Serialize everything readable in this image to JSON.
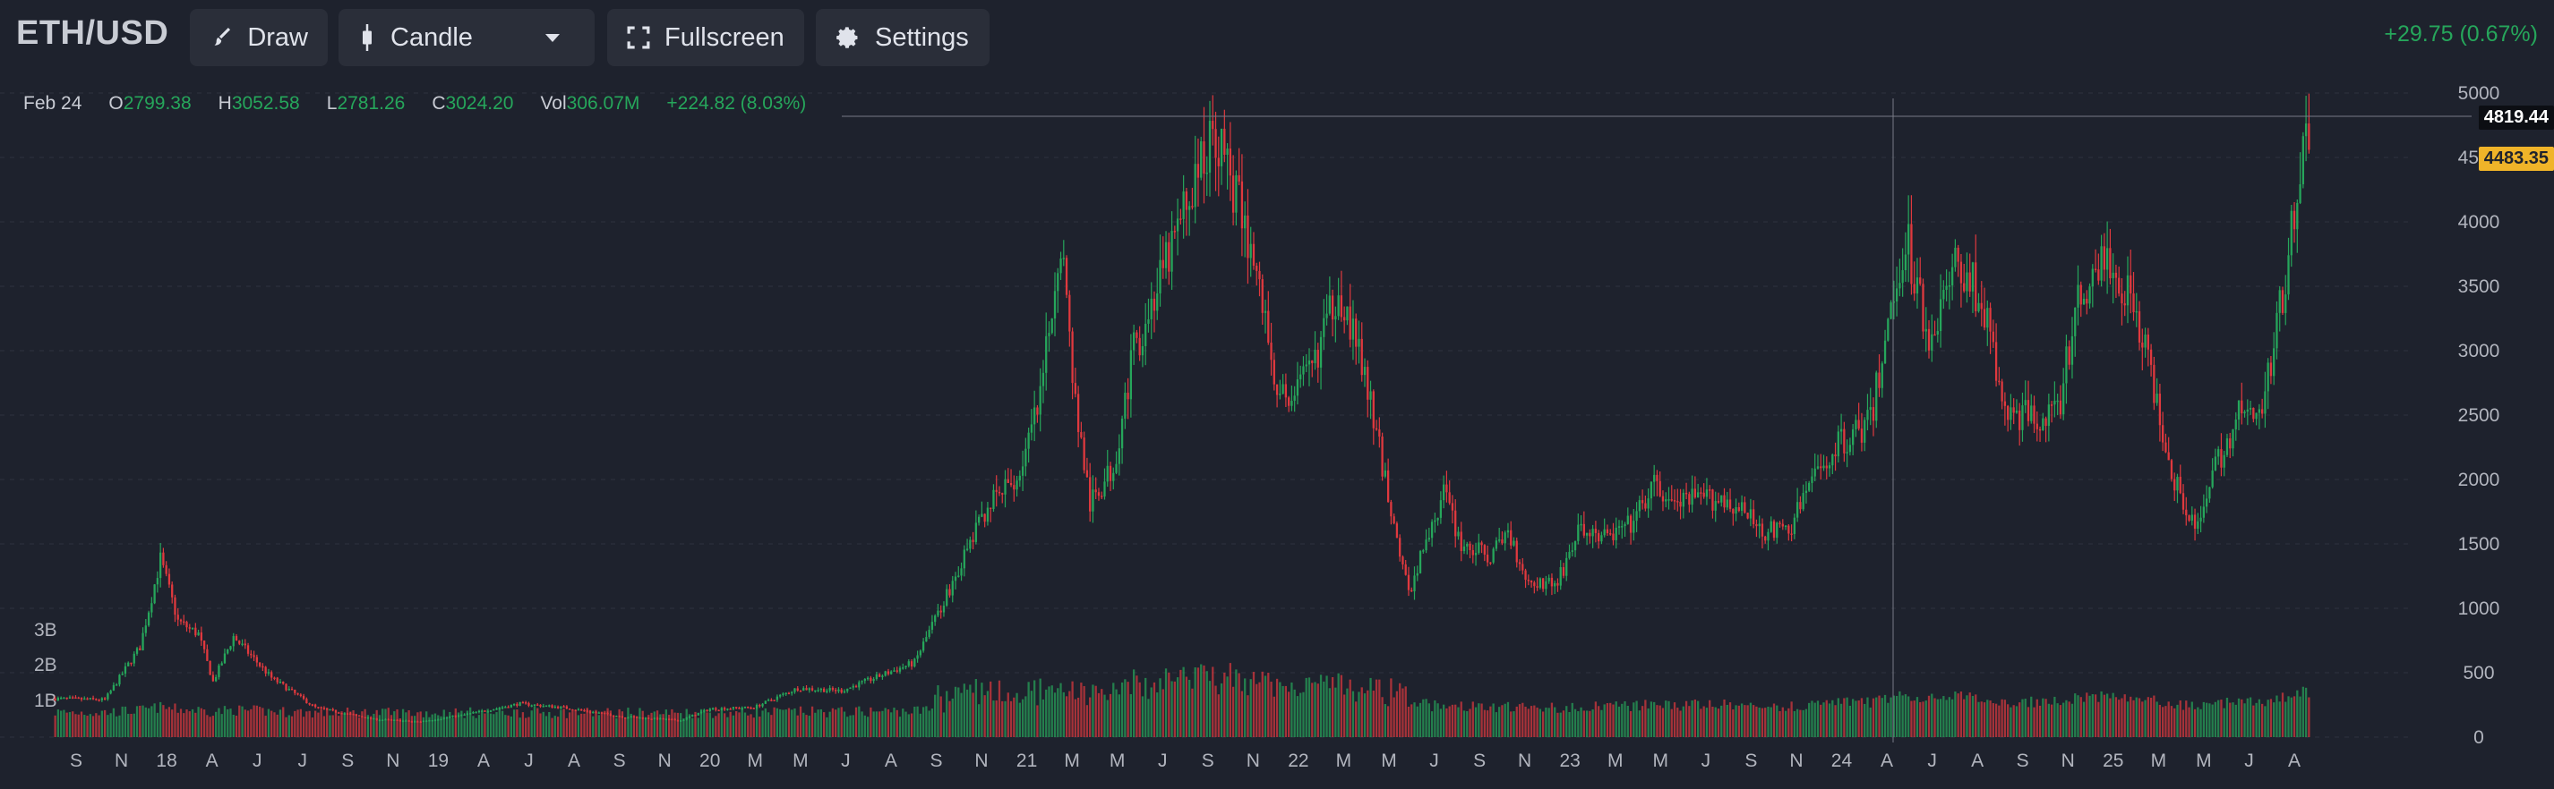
{
  "toolbar": {
    "symbol": "ETH/USD",
    "draw_label": "Draw",
    "chart_type_label": "Candle",
    "fullscreen_label": "Fullscreen",
    "settings_label": "Settings",
    "change": "+29.75 (0.67%)"
  },
  "legend": {
    "date": "Feb 24",
    "open_key": "O",
    "open": "2799.38",
    "high_key": "H",
    "high": "3052.58",
    "low_key": "L",
    "low": "2781.26",
    "close_key": "C",
    "close": "3024.20",
    "vol_key": "Vol",
    "vol": "306.07M",
    "change": "+224.82 (8.03%)"
  },
  "price_labels": {
    "crosshair": "4819.44",
    "last": "4483.35"
  },
  "colors": {
    "up": "#26a65b",
    "down": "#e0393e",
    "background": "#1e222d",
    "last_price": "#f0b429"
  },
  "chart_data": {
    "type": "candlestick",
    "y_axis_ticks": [
      "5000",
      "4500",
      "4000",
      "3500",
      "3000",
      "2500",
      "2000",
      "1500",
      "1000",
      "500",
      "0"
    ],
    "volume_axis_ticks": [
      "3B",
      "2B",
      "1B"
    ],
    "x_tick_labels": [
      "S",
      "N",
      "18",
      "A",
      "J",
      "J",
      "S",
      "N",
      "19",
      "A",
      "J",
      "A",
      "S",
      "N",
      "20",
      "M",
      "M",
      "J",
      "A",
      "S",
      "N",
      "21",
      "M",
      "M",
      "J",
      "S",
      "N",
      "22",
      "M",
      "M",
      "J",
      "S",
      "N",
      "23",
      "M",
      "M",
      "J",
      "S",
      "N",
      "24",
      "A",
      "J",
      "A",
      "S",
      "N",
      "25",
      "M",
      "M",
      "J",
      "A"
    ],
    "ylim": [
      0,
      5000
    ],
    "anchors": [
      [
        0,
        300
      ],
      [
        18,
        290
      ],
      [
        30,
        700
      ],
      [
        37,
        1380
      ],
      [
        43,
        900
      ],
      [
        50,
        800
      ],
      [
        55,
        430
      ],
      [
        62,
        780
      ],
      [
        75,
        460
      ],
      [
        90,
        230
      ],
      [
        110,
        140
      ],
      [
        125,
        120
      ],
      [
        140,
        170
      ],
      [
        160,
        260
      ],
      [
        175,
        230
      ],
      [
        195,
        160
      ],
      [
        215,
        130
      ],
      [
        225,
        220
      ],
      [
        240,
        230
      ],
      [
        255,
        380
      ],
      [
        270,
        360
      ],
      [
        295,
        580
      ],
      [
        310,
        1300
      ],
      [
        320,
        1800
      ],
      [
        330,
        2000
      ],
      [
        338,
        2600
      ],
      [
        345,
        3900
      ],
      [
        350,
        2600
      ],
      [
        355,
        1800
      ],
      [
        363,
        2100
      ],
      [
        370,
        3000
      ],
      [
        380,
        3600
      ],
      [
        392,
        4400
      ],
      [
        398,
        4700
      ],
      [
        405,
        4200
      ],
      [
        412,
        3600
      ],
      [
        420,
        2600
      ],
      [
        430,
        2800
      ],
      [
        440,
        3500
      ],
      [
        448,
        2900
      ],
      [
        456,
        2000
      ],
      [
        464,
        1100
      ],
      [
        468,
        1400
      ],
      [
        476,
        1900
      ],
      [
        482,
        1500
      ],
      [
        492,
        1400
      ],
      [
        498,
        1600
      ],
      [
        505,
        1200
      ],
      [
        515,
        1200
      ],
      [
        522,
        1600
      ],
      [
        532,
        1550
      ],
      [
        540,
        1650
      ],
      [
        548,
        1950
      ],
      [
        555,
        1800
      ],
      [
        562,
        1850
      ],
      [
        572,
        1850
      ],
      [
        578,
        1750
      ],
      [
        586,
        1600
      ],
      [
        594,
        1600
      ],
      [
        602,
        2000
      ],
      [
        612,
        2300
      ],
      [
        622,
        2450
      ],
      [
        628,
        3200
      ],
      [
        634,
        3900
      ],
      [
        642,
        3100
      ],
      [
        652,
        3700
      ],
      [
        660,
        3400
      ],
      [
        668,
        2500
      ],
      [
        676,
        2500
      ],
      [
        686,
        2500
      ],
      [
        692,
        3300
      ],
      [
        700,
        3700
      ],
      [
        706,
        3600
      ],
      [
        712,
        3400
      ],
      [
        720,
        2600
      ],
      [
        726,
        2000
      ],
      [
        734,
        1600
      ],
      [
        740,
        2100
      ],
      [
        748,
        2500
      ],
      [
        756,
        2500
      ],
      [
        764,
        3600
      ],
      [
        770,
        4700
      ],
      [
        772,
        4483
      ]
    ],
    "bars": 772,
    "last_price": 4483.35,
    "crosshair_price": 4819.44
  }
}
